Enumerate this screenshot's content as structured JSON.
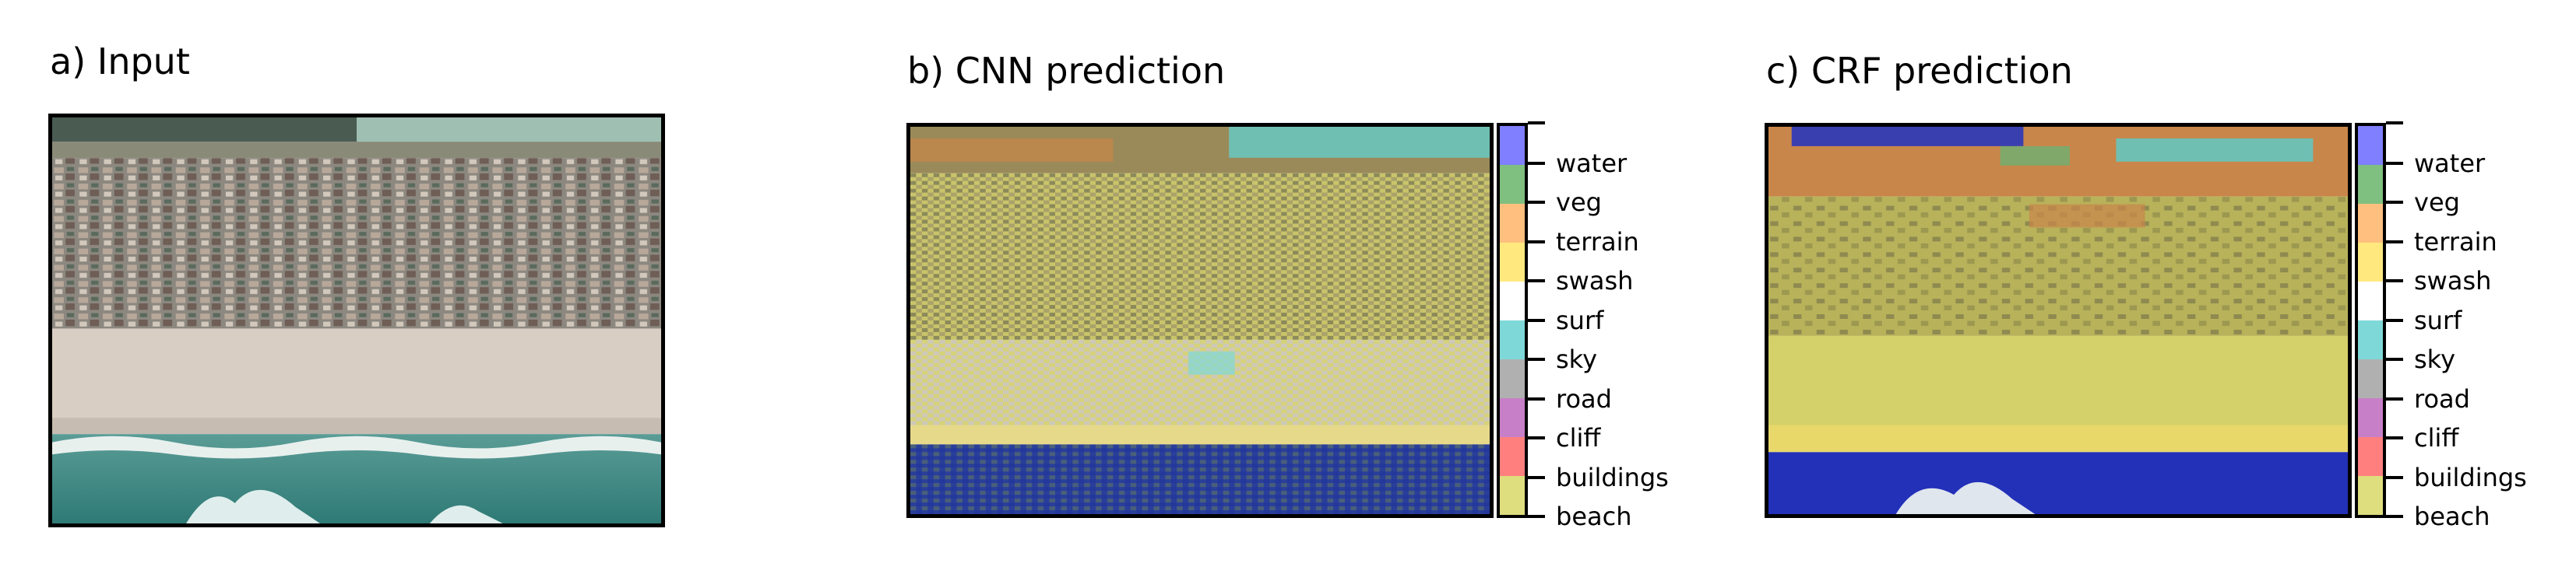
{
  "panels": [
    {
      "title": "a) Input"
    },
    {
      "title": "b) CNN prediction"
    },
    {
      "title": "c) CRF prediction"
    }
  ],
  "classes": [
    {
      "label": "water",
      "color": "#7f7fff"
    },
    {
      "label": "veg",
      "color": "#7fbf7f"
    },
    {
      "label": "terrain",
      "color": "#ffbf7f"
    },
    {
      "label": "swash",
      "color": "#ffe97f"
    },
    {
      "label": "surf",
      "color": "#ffffff"
    },
    {
      "label": "sky",
      "color": "#7fd8d8"
    },
    {
      "label": "road",
      "color": "#b0b0b0"
    },
    {
      "label": "cliff",
      "color": "#c77fc7"
    },
    {
      "label": "buildings",
      "color": "#ff7f7f"
    },
    {
      "label": "beach",
      "color": "#dede7f"
    }
  ]
}
